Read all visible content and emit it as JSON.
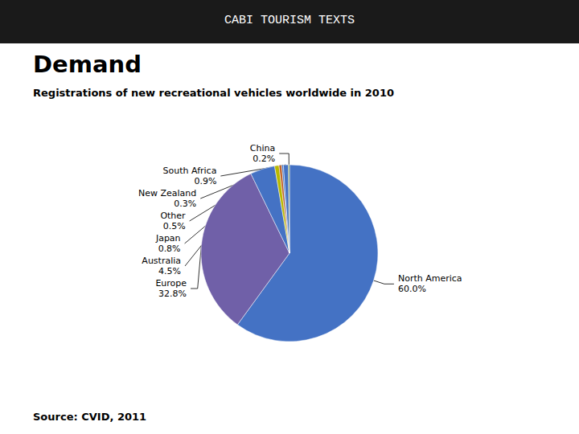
{
  "chart_data": {
    "type": "pie",
    "header": "CABI TOURISM TEXTS",
    "title": "Demand",
    "subtitle": "Registrations of new recreational vehicles worldwide in 2010",
    "source": "Source: CVID, 2011",
    "categories": [
      "North America",
      "Europe",
      "Australia",
      "Japan",
      "Other",
      "New Zealand",
      "South Africa",
      "China"
    ],
    "values": [
      60.0,
      32.8,
      4.5,
      0.8,
      0.5,
      0.3,
      0.9,
      0.2
    ],
    "value_labels": [
      "60.0%",
      "32.8%",
      "4.5%",
      "0.8%",
      "0.5%",
      "0.3%",
      "0.9%",
      "0.2%"
    ],
    "colors": [
      "#4472c4",
      "#7060a8",
      "#4472c4",
      "#b8b800",
      "#c0622a",
      "#4472c4",
      "#4472c4",
      "#6a8a3a"
    ],
    "data_labels": true
  }
}
